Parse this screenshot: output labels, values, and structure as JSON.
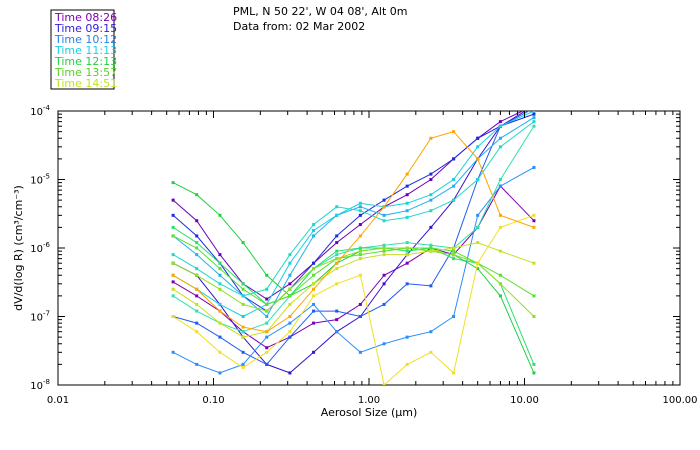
{
  "chart_data": {
    "type": "line",
    "title": "PML, N 50 22', W 04 08', Alt 0m",
    "subtitle": "Data from: 02 Mar 2002",
    "xlabel": "Aerosol Size (μm)",
    "ylabel": "dV/d(log R) (cm³/cm⁻³)",
    "xscale": "log",
    "yscale": "log",
    "xlim": [
      0.01,
      100
    ],
    "ylim": [
      1e-08,
      0.0001
    ],
    "xticks": [
      {
        "value": 0.01,
        "label": "0.01"
      },
      {
        "value": 0.1,
        "label": "0.10"
      },
      {
        "value": 1,
        "label": "1.00"
      },
      {
        "value": 10,
        "label": "10.00"
      },
      {
        "value": 100,
        "label": "100.00"
      }
    ],
    "yticks": [
      {
        "value": 1e-08,
        "base": "10",
        "exp": "-8"
      },
      {
        "value": 1e-07,
        "base": "10",
        "exp": "-7"
      },
      {
        "value": 1e-06,
        "base": "10",
        "exp": "-6"
      },
      {
        "value": 1e-05,
        "base": "10",
        "exp": "-5"
      },
      {
        "value": 0.0001,
        "base": "10",
        "exp": "-4"
      }
    ],
    "x": [
      0.055,
      0.078,
      0.11,
      0.155,
      0.22,
      0.31,
      0.44,
      0.62,
      0.88,
      1.25,
      1.76,
      2.5,
      3.5,
      5.0,
      7.0,
      11.5
    ],
    "series": [
      {
        "name": "Time 08:26",
        "color": "#7b00b0",
        "values": [
          3.2e-07,
          2e-07,
          1.2e-07,
          6e-08,
          3.5e-08,
          5e-08,
          8e-08,
          9e-08,
          1.5e-07,
          4e-07,
          6e-07,
          1e-06,
          8e-07,
          2e-06,
          8e-06,
          2.5e-06
        ]
      },
      {
        "name": "Time 08:26",
        "color": "#6a00b8",
        "values": [
          5e-06,
          2.5e-06,
          8e-07,
          3e-07,
          1.8e-07,
          3e-07,
          6e-07,
          1.2e-06,
          2.2e-06,
          4e-06,
          6e-06,
          1e-05,
          2e-05,
          4e-05,
          7e-05,
          0.00012
        ]
      },
      {
        "name": "Time 09:15",
        "color": "#3a10d0",
        "values": [
          6e-07,
          4e-07,
          1.5e-07,
          5e-08,
          2e-08,
          1.5e-08,
          3e-08,
          6e-08,
          1e-07,
          3e-07,
          8e-07,
          2e-06,
          5e-06,
          2e-05,
          6e-05,
          0.00012
        ]
      },
      {
        "name": "Time 09:15",
        "color": "#1f2ae0",
        "values": [
          3e-06,
          1.5e-06,
          6e-07,
          2e-07,
          1.2e-07,
          2.5e-07,
          6e-07,
          1.5e-06,
          3e-06,
          5e-06,
          8e-06,
          1.2e-05,
          2e-05,
          4e-05,
          6e-05,
          9e-05
        ]
      },
      {
        "name": "Time 10:12",
        "color": "#1e5cf0",
        "values": [
          1e-07,
          8e-08,
          5e-08,
          3e-08,
          2e-08,
          5e-08,
          1.2e-07,
          1.2e-07,
          1e-07,
          1.5e-07,
          3e-07,
          2.8e-07,
          1e-06,
          1e-05,
          6e-05,
          0.00011
        ]
      },
      {
        "name": "Time 10:12",
        "color": "#2a8cff",
        "values": [
          3e-08,
          2e-08,
          1.5e-08,
          2e-08,
          5e-08,
          8e-08,
          1.5e-07,
          6e-08,
          3e-08,
          4e-08,
          5e-08,
          6e-08,
          1e-07,
          3e-06,
          8e-06,
          1.5e-05
        ]
      },
      {
        "name": "Time 10:12",
        "color": "#20b0f0",
        "values": [
          1.5e-06,
          8e-07,
          4e-07,
          2e-07,
          1e-07,
          4e-07,
          1.5e-06,
          3e-06,
          4e-06,
          3e-06,
          3.5e-06,
          5e-06,
          8e-06,
          2e-05,
          4e-05,
          8e-05
        ]
      },
      {
        "name": "Time 11:13",
        "color": "#18d0e0",
        "values": [
          4e-07,
          2.5e-07,
          1.5e-07,
          1e-07,
          1.5e-07,
          6e-07,
          1.8e-06,
          3e-06,
          4.5e-06,
          4e-06,
          4.5e-06,
          6e-06,
          1e-05,
          3e-05,
          6e-05,
          0.0001
        ]
      },
      {
        "name": "Time 11:13",
        "color": "#20d8c8",
        "values": [
          8e-07,
          5e-07,
          3e-07,
          2e-07,
          2.5e-07,
          8e-07,
          2.2e-06,
          4e-06,
          3.5e-06,
          2.5e-06,
          2.8e-06,
          3.5e-06,
          5e-06,
          1e-05,
          3e-05,
          7e-05
        ]
      },
      {
        "name": "Time 11:13",
        "color": "#30e0b0",
        "values": [
          2e-07,
          1.2e-07,
          8e-08,
          6e-08,
          8e-08,
          2e-07,
          5e-07,
          8e-07,
          1e-06,
          1.1e-06,
          1.2e-06,
          1.1e-06,
          1e-06,
          2e-06,
          1e-05,
          6e-05
        ]
      },
      {
        "name": "Time 12:13",
        "color": "#28e070",
        "values": [
          2e-06,
          1.2e-06,
          6e-07,
          3e-07,
          1.5e-07,
          2e-07,
          5e-07,
          9e-07,
          1e-06,
          1e-06,
          9e-07,
          1e-06,
          7e-07,
          6e-07,
          3e-07,
          2e-08
        ]
      },
      {
        "name": "Time 12:13",
        "color": "#20d040",
        "values": [
          9e-06,
          6e-06,
          3e-06,
          1.2e-06,
          4e-07,
          2e-07,
          3e-07,
          6e-07,
          9e-07,
          1e-06,
          1e-06,
          9e-07,
          8e-07,
          5e-07,
          2e-07,
          1.5e-08
        ]
      },
      {
        "name": "Time 13:57",
        "color": "#58e030",
        "values": [
          1.5e-06,
          1e-06,
          5e-07,
          2.5e-07,
          1.5e-07,
          2e-07,
          4e-07,
          7e-07,
          8e-07,
          9e-07,
          1e-06,
          1e-06,
          9e-07,
          6e-07,
          4e-07,
          2e-07
        ]
      },
      {
        "name": "Time 13:57",
        "color": "#8fe020",
        "values": [
          6e-07,
          4e-07,
          2.5e-07,
          1.5e-07,
          1.2e-07,
          2.5e-07,
          5e-07,
          7e-07,
          9e-07,
          1e-06,
          1e-06,
          9e-07,
          8e-07,
          6e-07,
          3e-07,
          1e-07
        ]
      },
      {
        "name": "Time 14:51",
        "color": "#c8e020",
        "values": [
          2.5e-07,
          1.5e-07,
          8e-08,
          5e-08,
          6e-08,
          1.5e-07,
          3e-07,
          5e-07,
          7e-07,
          8e-07,
          8e-07,
          9e-07,
          1e-06,
          1.2e-06,
          9e-07,
          6e-07
        ]
      },
      {
        "name": "Time 14:51",
        "color": "#f0e020",
        "values": [
          1e-07,
          6e-08,
          3e-08,
          1.8e-08,
          3e-08,
          6e-08,
          2e-07,
          3e-07,
          4e-07,
          1e-08,
          2e-08,
          3e-08,
          1.5e-08,
          6e-07,
          2e-06,
          3e-06
        ]
      },
      {
        "name": "Time 14:51",
        "color": "#ffa500",
        "values": [
          4e-07,
          2.5e-07,
          1.2e-07,
          7e-08,
          6e-08,
          1e-07,
          2.5e-07,
          6e-07,
          1.5e-06,
          4e-06,
          1.2e-05,
          4e-05,
          5e-05,
          2e-05,
          3e-06,
          2e-06
        ]
      }
    ],
    "legend": {
      "placement": "top-left",
      "entries": [
        {
          "label": "Time 08:26",
          "color": "#7b00b0"
        },
        {
          "label": "Time 09:15",
          "color": "#3020d8"
        },
        {
          "label": "Time 10:12",
          "color": "#2a7cf0"
        },
        {
          "label": "Time 11:13",
          "color": "#18d0e0"
        },
        {
          "label": "Time 12:13",
          "color": "#20d040"
        },
        {
          "label": "Time 13:57",
          "color": "#58d020"
        },
        {
          "label": "Time 14:51",
          "color": "#c8e020"
        }
      ]
    }
  }
}
